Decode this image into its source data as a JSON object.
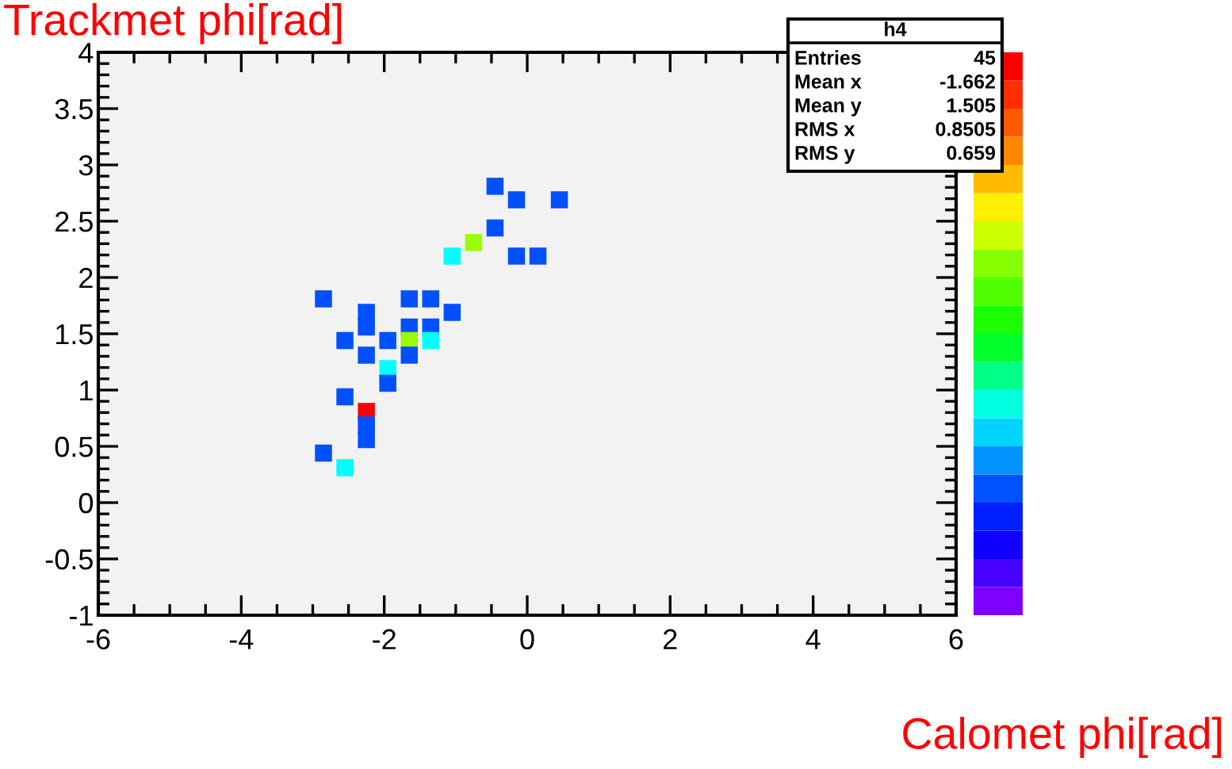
{
  "chart_data": {
    "type": "scatter",
    "xlabel": "Calomet phi[rad]",
    "ylabel": "Trackmet phi[rad]",
    "marker": "square",
    "x": [
      -0.45,
      -0.15,
      0.45,
      -0.45,
      -0.75,
      -1.05,
      -0.15,
      0.15,
      -2.85,
      -1.65,
      -1.35,
      -2.25,
      -2.25,
      -1.05,
      -1.65,
      -1.35,
      -2.55,
      -1.95,
      -1.65,
      -1.35,
      -2.25,
      -1.65,
      -1.95,
      -1.95,
      -2.55,
      -2.25,
      -2.25,
      -2.25,
      -2.85,
      -2.55
    ],
    "values": [
      2.81,
      2.69,
      2.69,
      2.44,
      2.31,
      2.19,
      2.19,
      2.19,
      1.81,
      1.81,
      1.81,
      1.69,
      1.56,
      1.69,
      1.56,
      1.56,
      1.44,
      1.44,
      1.44,
      1.44,
      1.31,
      1.31,
      1.19,
      1.06,
      0.94,
      0.81,
      0.69,
      0.56,
      0.44,
      0.31
    ],
    "colors": [
      "#0050ff",
      "#0050ff",
      "#0050ff",
      "#0050ff",
      "#99ff00",
      "#00ffff",
      "#0050ff",
      "#0050ff",
      "#0050ff",
      "#0050ff",
      "#0050ff",
      "#0050ff",
      "#0050ff",
      "#0050ff",
      "#0050ff",
      "#0050ff",
      "#0050ff",
      "#0050ff",
      "#99ff00",
      "#00ffff",
      "#0050ff",
      "#0050ff",
      "#00ffff",
      "#0050ff",
      "#0050ff",
      "#ff0000",
      "#0050ff",
      "#0050ff",
      "#0050ff",
      "#00ffff"
    ],
    "xlim": [
      -6,
      6
    ],
    "ylim": [
      -1,
      4
    ],
    "xticks": [
      -6,
      -4,
      -2,
      0,
      2,
      4,
      6
    ],
    "yticks": [
      -1,
      -0.5,
      0,
      0.5,
      1,
      1.5,
      2,
      2.5,
      3,
      3.5,
      4
    ],
    "grid": false,
    "annotations": [
      "h4",
      "Entries 45",
      "Mean x -1.662",
      "Mean y 1.505",
      "RMS x 0.8505",
      "RMS y 0.659"
    ]
  }
}
